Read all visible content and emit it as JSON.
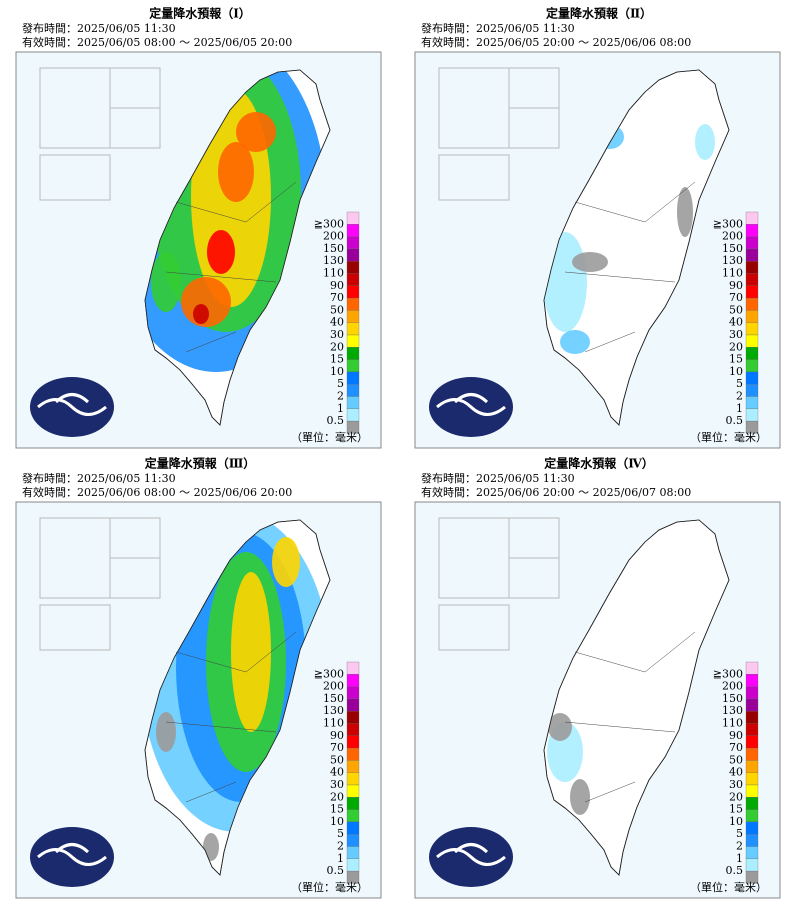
{
  "panels": [
    {
      "title": "定量降水預報（Ⅰ）",
      "issued": "發布時間：2025/06/05 11:30",
      "valid": "有效時間：2025/06/05 08:00 ～ 2025/06/05 20:00"
    },
    {
      "title": "定量降水預報（Ⅱ）",
      "issued": "發布時間：2025/06/05 11:30",
      "valid": "有效時間：2025/06/05 20:00 ～ 2025/06/06 08:00"
    },
    {
      "title": "定量降水預報（Ⅲ）",
      "issued": "發布時間：2025/06/05 11:30",
      "valid": "有效時間：2025/06/06 08:00 ～ 2025/06/06 20:00"
    },
    {
      "title": "定量降水預報（Ⅳ）",
      "issued": "發布時間：2025/06/05 11:30",
      "valid": "有效時間：2025/06/06 20:00 ～ 2025/06/07 08:00"
    }
  ],
  "legend": {
    "labels": [
      "≧300",
      "200",
      "150",
      "130",
      "110",
      "90",
      "70",
      "50",
      "40",
      "30",
      "20",
      "15",
      "10",
      "5",
      "2",
      "1",
      "0.5"
    ],
    "colors": [
      "#fdc8f0",
      "#fc00fc",
      "#cc00cc",
      "#990099",
      "#990000",
      "#cc0000",
      "#ff0000",
      "#ff6600",
      "#ffa500",
      "#ffd500",
      "#ffff00",
      "#00aa00",
      "#33cc33",
      "#0077ff",
      "#1e90ff",
      "#66ccff",
      "#aaeeff",
      "#9b9b9b"
    ]
  },
  "unit": "（單位：毫米）"
}
